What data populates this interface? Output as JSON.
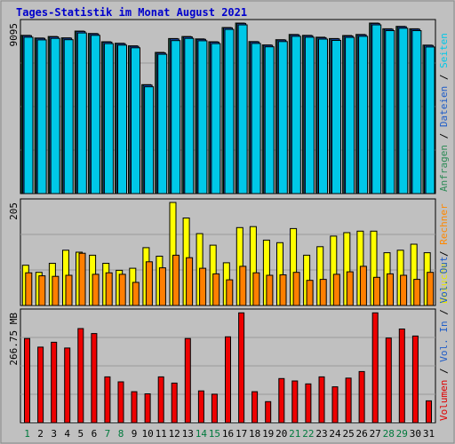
{
  "chart_data": {
    "title": "Tages-Statistik im Monat August 2021",
    "days": [
      "1",
      "2",
      "3",
      "4",
      "5",
      "6",
      "7",
      "8",
      "9",
      "10",
      "11",
      "12",
      "13",
      "14",
      "15",
      "16",
      "17",
      "18",
      "19",
      "20",
      "21",
      "22",
      "23",
      "24",
      "25",
      "26",
      "27",
      "28",
      "29",
      "30",
      "31"
    ],
    "weekend_days": [
      "1",
      "7",
      "8",
      "14",
      "15",
      "21",
      "22",
      "28",
      "29"
    ],
    "day_color_weekday": "#000000",
    "day_color_weekend": "#007a3d",
    "panels": [
      {
        "type": "bar",
        "axis_label": "9095",
        "ymax": 9095,
        "legend": [
          {
            "text": "Anfragen",
            "color": "#2e8b57"
          },
          {
            "text": "Dateien",
            "color": "#1e5cc8"
          },
          {
            "text": "Seiten",
            "color": "#00c8e8"
          }
        ],
        "series": [
          {
            "name": "Anfragen",
            "color": "#2e8b57",
            "values": [
              8440,
              8300,
              8380,
              8310,
              8670,
              8540,
              8100,
              8020,
              7880,
              5810,
              7530,
              8270,
              8380,
              8250,
              8100,
              8860,
              9095,
              8110,
              7930,
              8210,
              8490,
              8440,
              8340,
              8270,
              8430,
              8490,
              9095,
              8790,
              8920,
              8790,
              7920
            ]
          },
          {
            "name": "Dateien",
            "color": "#1e5cc8",
            "values": [
              8420,
              8280,
              8360,
              8290,
              8650,
              8520,
              8080,
              8000,
              7860,
              5790,
              7510,
              8250,
              8360,
              8230,
              8080,
              8840,
              9075,
              8090,
              7910,
              8190,
              8470,
              8420,
              8320,
              8250,
              8410,
              8470,
              9075,
              8770,
              8900,
              8770,
              7900
            ]
          },
          {
            "name": "Seiten",
            "color": "#00c8e8",
            "values": [
              8340,
              8200,
              8280,
              8210,
              8570,
              8440,
              8000,
              7920,
              7780,
              5700,
              7430,
              8160,
              8280,
              8150,
              8000,
              8760,
              9000,
              8010,
              7830,
              8110,
              8390,
              8340,
              8240,
              8170,
              8330,
              8390,
              9000,
              8690,
              8820,
              8690,
              7820
            ]
          }
        ]
      },
      {
        "type": "bar",
        "axis_label": "205",
        "ymax": 205,
        "legend": [
          {
            "text": "Besuche",
            "color": "#e8e800"
          },
          {
            "text": "Rechner",
            "color": "#ff8800"
          }
        ],
        "series": [
          {
            "name": "Besuche",
            "color": "#ffff00",
            "values": [
              80,
              66,
              84,
              110,
              106,
              100,
              84,
              70,
              74,
              115,
              98,
              205,
              174,
              143,
              120,
              85,
              155,
              157,
              130,
              125,
              153,
              100,
              117,
              138,
              145,
              148,
              148,
              105,
              110,
              122,
              105
            ]
          },
          {
            "name": "Rechner",
            "color": "#ff7f00",
            "values": [
              65,
              59,
              58,
              60,
              104,
              62,
              65,
              62,
              46,
              87,
              75,
              100,
              95,
              74,
              63,
              51,
              78,
              65,
              60,
              61,
              66,
              50,
              52,
              62,
              67,
              78,
              56,
              63,
              60,
              52,
              66
            ]
          }
        ]
      },
      {
        "type": "bar",
        "axis_label": "266.75 MB",
        "ymax": 266.75,
        "legend": [
          {
            "text": "Volumen",
            "color": "#e00000"
          },
          {
            "text": "Vol. In",
            "color": "#1e5cc8"
          },
          {
            "text": "Vol. Out",
            "color": "#1e5cc8"
          }
        ],
        "series": [
          {
            "name": "Volumen",
            "color": "#ee0000",
            "values": [
              204,
              183,
              195,
              181,
              228,
              216,
              111,
              99,
              75,
              70,
              111,
              96,
              204,
              77,
              69,
              208,
              266,
              75,
              51,
              107,
              101,
              94,
              111,
              87,
              108,
              124,
              266,
              205,
              227,
              210,
              53
            ]
          }
        ]
      }
    ]
  }
}
